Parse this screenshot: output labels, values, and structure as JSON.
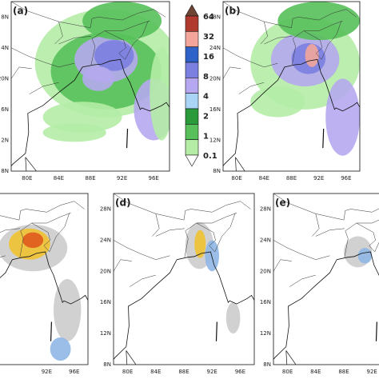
{
  "panels": [
    {
      "label": "(a)",
      "lat_labels": [
        "8N",
        "4N",
        "20N",
        "6N",
        "2N",
        "8N"
      ],
      "lon_labels": [
        "80E",
        "84E",
        "88E",
        "92E",
        "96E"
      ]
    },
    {
      "label": "(b)",
      "lat_labels": [
        "28N",
        "24N",
        "20N",
        "16N",
        "12N",
        "8N"
      ],
      "lon_labels": [
        "80E",
        "84E",
        "88E",
        "92E",
        "96E"
      ]
    },
    {
      "lon_labels": [
        "92E",
        "96E"
      ]
    },
    {
      "label": "(d)",
      "lat_labels": [
        "28N",
        "24N",
        "20N",
        "16N",
        "12N",
        "8N"
      ],
      "lon_labels": [
        "80E",
        "84E",
        "88E",
        "92E",
        "96E"
      ]
    },
    {
      "label": "(e)",
      "lat_labels": [
        "28N",
        "24N",
        "20N",
        "16N",
        "12N",
        "8N"
      ],
      "lon_labels": [
        "80E",
        "84E",
        "88E",
        "92E"
      ]
    }
  ],
  "colorbar": {
    "labels": [
      "64",
      "32",
      "16",
      "8",
      "4",
      "2",
      "1",
      "0.1"
    ],
    "colors": [
      "#6e4433",
      "#b03a2e",
      "#f2a59b",
      "#2f62c8",
      "#7b7fe0",
      "#b6a8f0",
      "#a9d4f5",
      "#2a9a3a",
      "#57c05a",
      "#b4eca6",
      "#ffffff"
    ]
  }
}
